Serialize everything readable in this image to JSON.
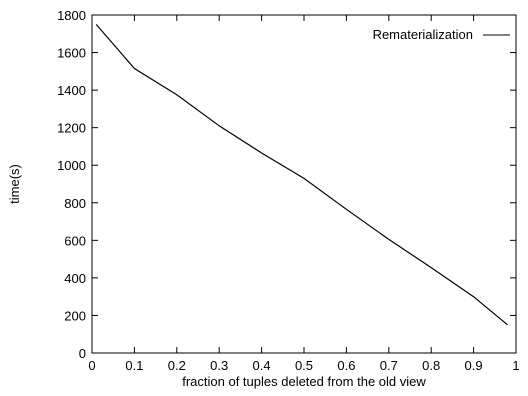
{
  "chart_data": {
    "type": "line",
    "title": "",
    "xlabel": "fraction of tuples deleted from the old view",
    "ylabel": "time(s)",
    "xlim": [
      0,
      1
    ],
    "ylim": [
      0,
      1800
    ],
    "xticks": [
      0,
      0.1,
      0.2,
      0.3,
      0.4,
      0.5,
      0.6,
      0.7,
      0.8,
      0.9,
      1
    ],
    "xtick_labels": [
      "0",
      "0.1",
      "0.2",
      "0.3",
      "0.4",
      "0.5",
      "0.6",
      "0.7",
      "0.8",
      "0.9",
      "1"
    ],
    "yticks": [
      0,
      200,
      400,
      600,
      800,
      1000,
      1200,
      1400,
      1600,
      1800
    ],
    "ytick_labels": [
      "0",
      "200",
      "400",
      "600",
      "800",
      "1000",
      "1200",
      "1400",
      "1600",
      "1800"
    ],
    "grid": false,
    "legend_position": "top-right",
    "series": [
      {
        "name": "Rematerialization",
        "color": "#000000",
        "x": [
          0.01,
          0.1,
          0.2,
          0.3,
          0.4,
          0.5,
          0.6,
          0.7,
          0.8,
          0.9,
          0.98
        ],
        "y": [
          1750,
          1515,
          1375,
          1210,
          1065,
          930,
          765,
          605,
          455,
          300,
          150
        ]
      }
    ]
  }
}
